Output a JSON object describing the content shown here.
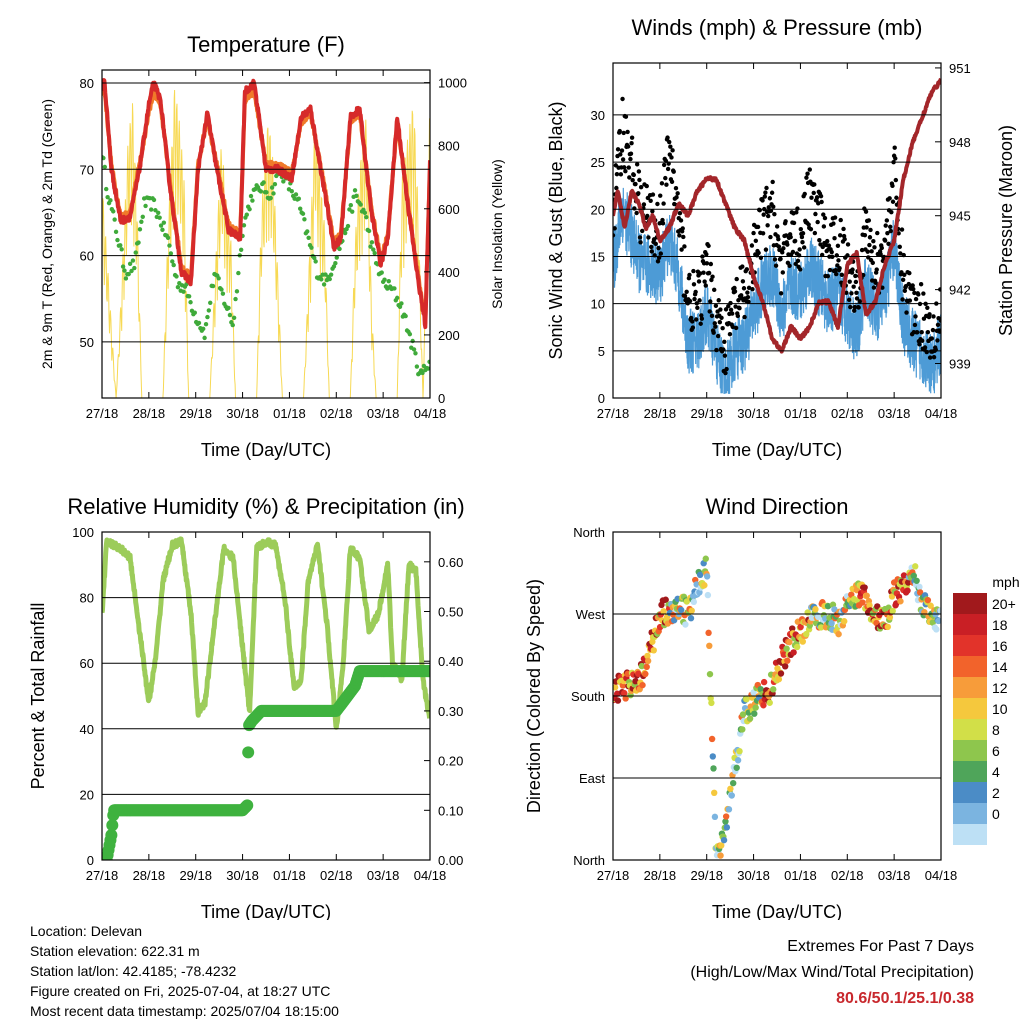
{
  "x_tick_labels": [
    "27/18",
    "28/18",
    "29/18",
    "30/18",
    "01/18",
    "02/18",
    "03/18",
    "04/18"
  ],
  "footer": {
    "location": "Location: Delevan",
    "elevation": "Station elevation: 622.31 m",
    "latlon": "Station lat/lon: 42.4185; -78.4232",
    "created": "Figure created on Fri, 2025-07-04, at 18:27 UTC",
    "recent": "Most recent data timestamp: 2025/07/04 18:15:00"
  },
  "extremes": {
    "title": "Extremes For Past 7 Days",
    "subtitle": "(High/Low/Max Wind/Total Precipitation)",
    "values": "80.6/50.1/25.1/0.38"
  },
  "colors": {
    "temp_2m": "#d62a2a",
    "temp_9m": "#f07a2a",
    "dewpoint": "#3faa3a",
    "solar": "#f7d954",
    "wind": "#4d9bd6",
    "gust": "#000000",
    "pressure": "#a3262a",
    "rh": "#9ccc5a",
    "rain": "#3fb23f"
  },
  "chart_data": [
    {
      "type": "line",
      "title": "Temperature (F)",
      "xlabel": "Time (Day/UTC)",
      "ylabel": "2m & 9m T (Red, Orange) & 2m Td (Green)",
      "ylabel_right": "Solar Insolation (Yellow)",
      "ylim": [
        43.5,
        81.5
      ],
      "ylim_right": [
        0,
        1040
      ],
      "yticks": [
        50,
        60,
        70,
        80
      ],
      "yticks_right": [
        0,
        200,
        400,
        600,
        800,
        1000
      ],
      "grid": true,
      "x_days": [
        0,
        7
      ],
      "series": [
        {
          "color_key": "temp_2m",
          "x": [
            0.0,
            0.05,
            0.2,
            0.4,
            0.6,
            0.8,
            1.0,
            1.1,
            1.25,
            1.45,
            1.7,
            1.9,
            2.05,
            2.25,
            2.45,
            2.7,
            2.95,
            3.05,
            3.25,
            3.5,
            3.75,
            4.05,
            4.25,
            4.45,
            4.7,
            4.95,
            5.1,
            5.3,
            5.5,
            5.75,
            5.95,
            6.1,
            6.3,
            6.55,
            6.75,
            6.9,
            7.0
          ],
          "y": [
            79,
            80.5,
            70,
            64,
            64.5,
            70,
            77.5,
            80,
            78,
            68,
            58,
            57,
            70,
            76.5,
            70,
            63,
            62,
            79,
            80,
            70,
            70,
            69,
            76,
            77,
            69,
            61,
            62,
            76,
            77,
            65,
            59,
            62,
            76,
            65,
            57,
            52,
            71
          ]
        },
        {
          "color_key": "temp_9m",
          "x": [
            0.0,
            0.05,
            0.2,
            0.4,
            0.6,
            0.8,
            1.0,
            1.1,
            1.25,
            1.45,
            1.7,
            1.9,
            2.05,
            2.25,
            2.45,
            2.7,
            2.95,
            3.05,
            3.25,
            3.5,
            3.75,
            4.05,
            4.25,
            4.45,
            4.7,
            4.95,
            5.1,
            5.3,
            5.5,
            5.75,
            5.95,
            6.1,
            6.3,
            6.55,
            6.75,
            6.9,
            7.0
          ],
          "y": [
            78.5,
            79.5,
            70.5,
            64.5,
            65,
            70.5,
            76.5,
            79,
            77.5,
            68.5,
            58.5,
            57.5,
            70.5,
            76,
            70.5,
            63.5,
            62.5,
            78,
            79,
            70.5,
            70.5,
            69.5,
            75.5,
            76.5,
            69.5,
            61.5,
            62.5,
            75.5,
            76.5,
            65.5,
            59.5,
            62.5,
            75.5,
            65.5,
            57.5,
            52.5,
            70.5
          ]
        },
        {
          "color_key": "dewpoint",
          "x": [
            0.0,
            0.1,
            0.3,
            0.5,
            0.7,
            0.9,
            1.1,
            1.4,
            1.6,
            1.8,
            2.0,
            2.2,
            2.4,
            2.6,
            2.8,
            3.0,
            3.2,
            3.4,
            3.6,
            3.8,
            4.0,
            4.2,
            4.4,
            4.6,
            4.8,
            5.0,
            5.2,
            5.4,
            5.6,
            5.8,
            6.0,
            6.2,
            6.4,
            6.6,
            6.8,
            7.0
          ],
          "y": [
            72,
            68,
            63,
            58,
            59,
            66,
            66,
            62,
            57,
            56,
            53,
            51,
            58,
            55,
            52,
            63,
            67,
            68,
            67,
            70,
            68,
            66,
            62,
            58,
            57,
            60,
            63,
            67,
            65,
            60,
            57,
            56,
            54,
            50,
            46,
            48
          ]
        },
        {
          "color_key": "solar",
          "axis": "right",
          "x": [
            0.0,
            0.3,
            0.4,
            0.55,
            0.65,
            0.75,
            0.85,
            1.3,
            1.4,
            1.55,
            1.65,
            1.75,
            1.85,
            2.3,
            2.4,
            2.55,
            2.65,
            2.75,
            2.85,
            3.3,
            3.4,
            3.55,
            3.65,
            3.75,
            3.85,
            4.3,
            4.4,
            4.55,
            4.65,
            4.75,
            4.85,
            5.3,
            5.4,
            5.55,
            5.65,
            5.75,
            5.85,
            6.3,
            6.4,
            6.55,
            6.65,
            6.75,
            6.85,
            7.0
          ],
          "y": [
            700,
            0,
            300,
            800,
            950,
            600,
            0,
            0,
            500,
            1000,
            880,
            700,
            0,
            0,
            350,
            820,
            620,
            500,
            0,
            0,
            600,
            900,
            750,
            400,
            0,
            0,
            350,
            900,
            700,
            550,
            0,
            0,
            500,
            820,
            900,
            300,
            0,
            0,
            700,
            850,
            950,
            600,
            0,
            950
          ]
        }
      ]
    },
    {
      "type": "line",
      "title": "Winds (mph) & Pressure (mb)",
      "xlabel": "Time (Day/UTC)",
      "ylabel": "Sonic Wind & Gust (Blue, Black)",
      "ylabel_right": "Station Pressure (Maroon)",
      "ylim": [
        0,
        35.5
      ],
      "ylim_right": [
        937.6,
        951.2
      ],
      "yticks": [
        0,
        5,
        10,
        15,
        20,
        25,
        30
      ],
      "yticks_right": [
        939,
        942,
        945,
        948,
        951
      ],
      "grid": true,
      "x_days": [
        0,
        7
      ],
      "series": [
        {
          "color_key": "wind",
          "x": [
            0.0,
            0.2,
            0.4,
            0.6,
            0.8,
            1.0,
            1.2,
            1.4,
            1.6,
            1.8,
            2.0,
            2.2,
            2.4,
            2.6,
            2.8,
            3.0,
            3.2,
            3.4,
            3.6,
            3.8,
            4.0,
            4.2,
            4.4,
            4.6,
            4.8,
            5.0,
            5.2,
            5.4,
            5.6,
            5.8,
            6.0,
            6.2,
            6.4,
            6.6,
            6.8,
            7.0
          ],
          "y": [
            14,
            20,
            17,
            14,
            14,
            13,
            17,
            13,
            6,
            6,
            9,
            5,
            2,
            5,
            6,
            9,
            12,
            13,
            9,
            12,
            11,
            14,
            12,
            10,
            11,
            9,
            7,
            12,
            9,
            11,
            16,
            8,
            6,
            5,
            3,
            6
          ]
        },
        {
          "color_key": "gust",
          "x": [
            0.0,
            0.2,
            0.4,
            0.6,
            0.8,
            1.0,
            1.2,
            1.4,
            1.6,
            1.8,
            2.0,
            2.2,
            2.4,
            2.6,
            2.8,
            3.0,
            3.2,
            3.4,
            3.6,
            3.8,
            4.0,
            4.2,
            4.4,
            4.6,
            4.8,
            5.0,
            5.2,
            5.4,
            5.6,
            5.8,
            6.0,
            6.2,
            6.4,
            6.6,
            6.8,
            7.0
          ],
          "y": [
            18,
            28,
            24,
            19,
            18,
            17,
            26,
            18,
            10,
            9,
            13,
            8,
            5,
            9,
            10,
            14,
            18,
            19,
            13,
            17,
            16,
            21,
            18,
            14,
            16,
            13,
            11,
            17,
            13,
            15,
            23,
            12,
            9,
            8,
            6,
            9
          ]
        },
        {
          "color_key": "pressure",
          "axis": "right",
          "x": [
            0.0,
            0.1,
            0.25,
            0.4,
            0.55,
            0.7,
            0.85,
            1.0,
            1.2,
            1.4,
            1.6,
            1.8,
            2.0,
            2.2,
            2.4,
            2.6,
            2.8,
            3.0,
            3.2,
            3.4,
            3.6,
            3.8,
            4.0,
            4.2,
            4.4,
            4.6,
            4.8,
            5.0,
            5.2,
            5.4,
            5.6,
            5.8,
            6.0,
            6.2,
            6.4,
            6.6,
            6.8,
            7.0
          ],
          "y": [
            945,
            946,
            944.5,
            946,
            945.5,
            944.5,
            945,
            944,
            944.5,
            945.5,
            945,
            946,
            946.5,
            946.5,
            945.5,
            944.5,
            944,
            942.5,
            941.5,
            940,
            939.5,
            940.5,
            940,
            940.5,
            941.5,
            941.5,
            940.5,
            943,
            943.5,
            941,
            941.5,
            943,
            944,
            946.5,
            948,
            949,
            950,
            950.5
          ]
        }
      ]
    },
    {
      "type": "line",
      "title": "Relative Humidity (%) & Precipitation (in)",
      "xlabel": "Time (Day/UTC)",
      "ylabel": "Percent & Total Rainfall",
      "ylim": [
        0,
        100
      ],
      "ylim_right": [
        0,
        0.66
      ],
      "yticks": [
        0,
        20,
        40,
        60,
        80,
        100
      ],
      "yticks_right": [
        0.0,
        0.1,
        0.2,
        0.3,
        0.4,
        0.5,
        0.6
      ],
      "yticklabels_right": [
        "0.00",
        "0.10",
        "0.20",
        "0.30",
        "0.40",
        "0.50",
        "0.60"
      ],
      "grid": true,
      "x_days": [
        0,
        7
      ],
      "series": [
        {
          "color_key": "rh",
          "x": [
            0.0,
            0.1,
            0.25,
            0.4,
            0.6,
            0.8,
            1.0,
            1.15,
            1.3,
            1.5,
            1.7,
            1.9,
            2.05,
            2.2,
            2.4,
            2.6,
            2.8,
            3.0,
            3.15,
            3.3,
            3.5,
            3.7,
            3.9,
            4.1,
            4.25,
            4.4,
            4.6,
            4.8,
            5.0,
            5.15,
            5.3,
            5.5,
            5.7,
            5.9,
            6.1,
            6.2,
            6.4,
            6.55,
            6.7,
            6.85,
            7.0
          ],
          "y": [
            75,
            97,
            96,
            95,
            92,
            70,
            48,
            62,
            85,
            96,
            97,
            75,
            45,
            48,
            72,
            95,
            92,
            65,
            45,
            95,
            97,
            96,
            80,
            52,
            55,
            85,
            96,
            72,
            40,
            60,
            95,
            92,
            70,
            75,
            90,
            60,
            55,
            90,
            88,
            55,
            42
          ]
        },
        {
          "color_key": "rain",
          "x": [
            0.0,
            0.1,
            0.2,
            0.25,
            0.35,
            0.5,
            1.0,
            2.0,
            3.0,
            3.1,
            3.13,
            3.2,
            3.4,
            4.0,
            5.0,
            5.4,
            5.5,
            5.6,
            6.0,
            7.0
          ],
          "y": [
            0.0,
            0.0,
            0.05,
            0.1,
            0.1,
            0.1,
            0.1,
            0.1,
            0.1,
            0.11,
            0.27,
            0.28,
            0.3,
            0.3,
            0.3,
            0.35,
            0.38,
            0.38,
            0.38,
            0.38
          ]
        }
      ]
    },
    {
      "type": "scatter",
      "title": "Wind Direction",
      "xlabel": "Time (Day/UTC)",
      "ylabel": "Direction (Colored By Speed)",
      "ylim": [
        0,
        360
      ],
      "yticks": [
        0,
        90,
        180,
        270,
        360
      ],
      "yticklabels": [
        "North",
        "East",
        "South",
        "West",
        "North"
      ],
      "grid": true,
      "x_days": [
        0,
        7
      ],
      "colorbar": {
        "title": "mph",
        "labels": [
          "20+",
          "18",
          "16",
          "14",
          "12",
          "10",
          "8",
          "6",
          "4",
          "2",
          "0"
        ],
        "colors": [
          "#a1191c",
          "#c91f25",
          "#e2332a",
          "#f2632b",
          "#f79c3a",
          "#f5c83d",
          "#d2df48",
          "#8ec64d",
          "#4fa55a",
          "#4b8cc6",
          "#7bb4e0",
          "#bde0f5"
        ]
      },
      "series": [
        {
          "name": "",
          "x": [
            0.0,
            0.2,
            0.4,
            0.6,
            0.8,
            1.0,
            1.2,
            1.4,
            1.6,
            1.8,
            2.0,
            2.2,
            2.4,
            2.6,
            2.8,
            3.0,
            3.2,
            3.4,
            3.6,
            3.8,
            4.0,
            4.2,
            4.4,
            4.6,
            4.8,
            5.0,
            5.2,
            5.4,
            5.6,
            5.8,
            6.0,
            6.2,
            6.4,
            6.6,
            6.8,
            7.0
          ],
          "y": [
            185,
            190,
            195,
            200,
            230,
            270,
            275,
            280,
            270,
            300,
            320,
            0,
            40,
            100,
            160,
            175,
            180,
            190,
            220,
            240,
            250,
            265,
            270,
            270,
            260,
            280,
            290,
            285,
            270,
            260,
            290,
            300,
            320,
            280,
            270,
            260
          ]
        }
      ]
    }
  ]
}
